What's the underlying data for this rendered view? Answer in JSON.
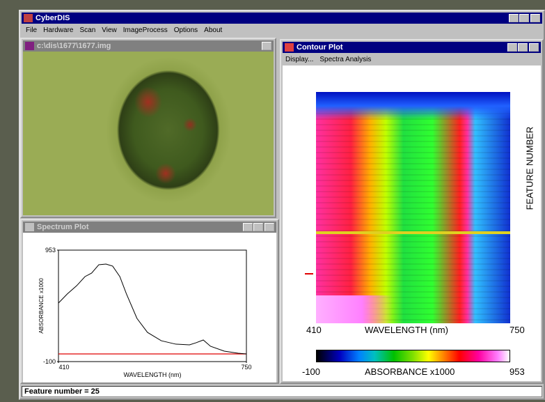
{
  "app": {
    "title": "CyberDIS",
    "menu": [
      "File",
      "Hardware",
      "Scan",
      "View",
      "ImageProcess",
      "Options",
      "About"
    ],
    "status": "Feature number = 25"
  },
  "image_window": {
    "title": "c:\\dis\\1677\\1677.img"
  },
  "contour_window": {
    "title": "Contour Plot",
    "menu": [
      "Display...",
      "Spectra Analysis"
    ],
    "x_min_label": "410",
    "x_label": "WAVELENGTH (nm)",
    "x_max_label": "750",
    "y_label": "FEATURE NUMBER",
    "colorbar_min_label": "-100",
    "colorbar_label": "ABSORBANCE x1000",
    "colorbar_max_label": "953"
  },
  "spectrum_window": {
    "title": "Spectrum Plot"
  },
  "chart_data": {
    "type": "line",
    "x_label": "WAVELENGTH (nm)",
    "y_label": "ABSORBANCE x1000",
    "xlim": [
      410,
      750
    ],
    "ylim": [
      -100,
      953
    ],
    "xticks": [
      410,
      750
    ],
    "yticks": [
      -100,
      953
    ],
    "series": [
      {
        "color": "#000000",
        "x": [
          410,
          426,
          443,
          458,
          470,
          483,
          496,
          508,
          521,
          533,
          552,
          571,
          596,
          622,
          647,
          659,
          672,
          685,
          710,
          735,
          750
        ],
        "values": [
          453,
          539,
          617,
          703,
          736,
          815,
          821,
          802,
          703,
          539,
          308,
          176,
          97,
          65,
          58,
          78,
          104,
          45,
          -1,
          -21,
          -28
        ]
      }
    ]
  }
}
